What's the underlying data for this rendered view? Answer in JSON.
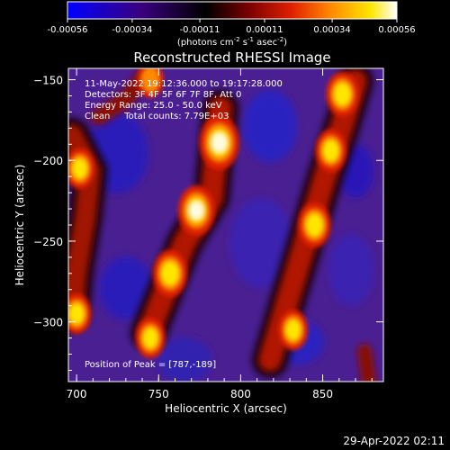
{
  "chart_data": {
    "type": "heatmap",
    "title": "Reconstructed RHESSI Image",
    "xlabel": "Heliocentric X (arcsec)",
    "ylabel": "Heliocentric Y (arcsec)",
    "xlim": [
      695,
      887
    ],
    "ylim": [
      -337,
      -143
    ],
    "x_ticks": [
      "700",
      "750",
      "800",
      "850"
    ],
    "y_ticks": [
      "-150",
      "-200",
      "-250",
      "-300"
    ],
    "colorbar": {
      "ticks": [
        "-0.00056",
        "-0.00034",
        "-0.00011",
        "0.00011",
        "0.00034",
        "0.00056"
      ],
      "range": [
        -0.00056,
        0.00056
      ],
      "unit_label_main": "(photons cm",
      "unit_exp1": "-2",
      "unit_mid": " s",
      "unit_exp2": "-1",
      "unit_tail": " asec",
      "unit_exp3": "-2",
      "unit_close": ")",
      "colormap": [
        "#0000ff",
        "#3a0080",
        "#000000",
        "#7a0000",
        "#e02000",
        "#ff8a00",
        "#ffe600",
        "#ffffff"
      ]
    },
    "info_lines": [
      "11-May-2022 19:12:36.000 to 19:17:28.000",
      "Detectors: 3F 4F 5F 6F 7F 8F, Att 0",
      "Energy Range: 25.0 - 50.0 keV",
      "Clean     Total counts: 7.79E+03"
    ],
    "peak_label": "Position of Peak = [787,-189]",
    "sources": [
      {
        "x": 787,
        "y": -189,
        "value": 0.00056
      },
      {
        "x": 773,
        "y": -231,
        "value": 0.00048
      },
      {
        "x": 757,
        "y": -270,
        "value": 0.00042
      },
      {
        "x": 745,
        "y": -310,
        "value": 0.0003
      },
      {
        "x": 862,
        "y": -159,
        "value": 0.00038
      },
      {
        "x": 855,
        "y": -194,
        "value": 0.00034
      },
      {
        "x": 845,
        "y": -240,
        "value": 0.00038
      },
      {
        "x": 832,
        "y": -305,
        "value": 0.0003
      },
      {
        "x": 702,
        "y": -205,
        "value": 0.0003
      },
      {
        "x": 700,
        "y": -295,
        "value": 0.0003
      },
      {
        "x": 745,
        "y": -150,
        "value": 0.00022
      }
    ]
  },
  "timestamp": "29-Apr-2022 02:11"
}
